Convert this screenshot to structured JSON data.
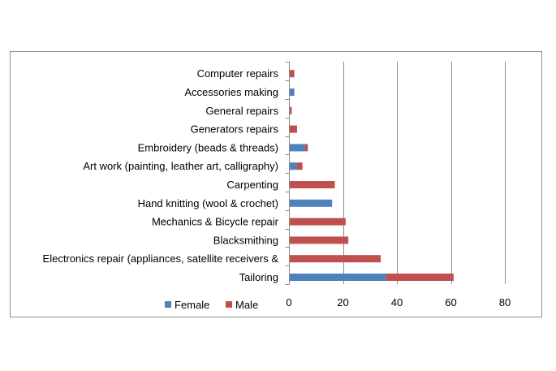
{
  "chart_data": {
    "type": "bar",
    "orientation": "horizontal",
    "stacked": true,
    "categories": [
      "Tailoring",
      "Electronics repair (appliances, satellite receivers &",
      "Blacksmithing",
      "Mechanics & Bicycle repair",
      "Hand knitting (wool & crochet)",
      "Carpenting",
      "Art work (painting, leather art, calligraphy)",
      "Embroidery (beads & threads)",
      "Generators repairs",
      "General repairs",
      "Accessories making",
      "Computer repairs"
    ],
    "series": [
      {
        "name": "Female",
        "color": "#4f81bd",
        "values": [
          36,
          0,
          0,
          0,
          16,
          0,
          3,
          6,
          0,
          0,
          2,
          0
        ]
      },
      {
        "name": "Male",
        "color": "#c0504d",
        "values": [
          25,
          34,
          22,
          21,
          0,
          17,
          2,
          1,
          3,
          1,
          0,
          2
        ]
      }
    ],
    "xlim": [
      0,
      80
    ],
    "xticks": [
      0,
      20,
      40,
      60,
      80
    ],
    "grid": true,
    "legend": "bottom-left",
    "title": "",
    "xlabel": "",
    "ylabel": ""
  }
}
